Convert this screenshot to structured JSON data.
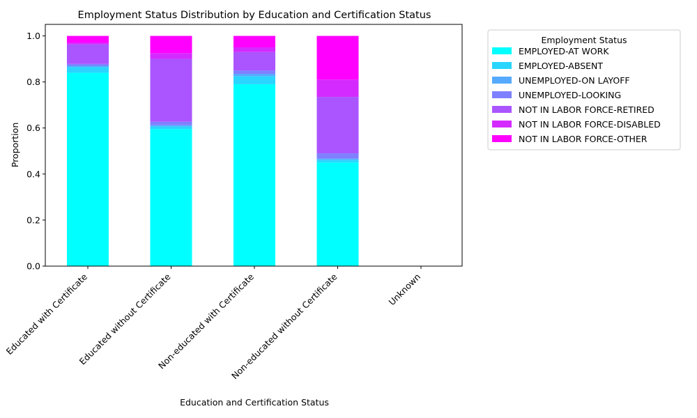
{
  "chart_data": {
    "type": "bar",
    "stacked": true,
    "title": "Employment Status Distribution by Education and Certification Status",
    "xlabel": "Education and Certification Status",
    "ylabel": "Proportion",
    "ylim": [
      0,
      1.05
    ],
    "yticks": [
      "0.0",
      "0.2",
      "0.4",
      "0.6",
      "0.8",
      "1.0"
    ],
    "grid": false,
    "categories": [
      "Educated with Certificate",
      "Educated without Certificate",
      "Non-educated with Certificate",
      "Non-educated without Certificate",
      "Unknown"
    ],
    "legend": {
      "title": "Employment Status",
      "placement": "outside-right-top"
    },
    "series": [
      {
        "name": "EMPLOYED-AT WORK",
        "color": "#00ffff",
        "values": [
          0.84,
          0.595,
          0.79,
          0.45,
          0
        ]
      },
      {
        "name": "EMPLOYED-ABSENT",
        "color": "#2ad5ff",
        "values": [
          0.025,
          0.012,
          0.035,
          0.012,
          0
        ]
      },
      {
        "name": "UNEMPLOYED-ON LAYOFF",
        "color": "#55aaff",
        "values": [
          0.005,
          0.005,
          0.01,
          0.005,
          0
        ]
      },
      {
        "name": "UNEMPLOYED-LOOKING",
        "color": "#7f80ff",
        "values": [
          0.008,
          0.015,
          0.015,
          0.023,
          0
        ]
      },
      {
        "name": "NOT IN LABOR FORCE-RETIRED",
        "color": "#aa55ff",
        "values": [
          0.085,
          0.273,
          0.08,
          0.245,
          0
        ]
      },
      {
        "name": "NOT IN LABOR FORCE-DISABLED",
        "color": "#d42aff",
        "values": [
          0.007,
          0.025,
          0.02,
          0.075,
          0
        ]
      },
      {
        "name": "NOT IN LABOR FORCE-OTHER",
        "color": "#ff00ff",
        "values": [
          0.03,
          0.075,
          0.05,
          0.19,
          0
        ]
      }
    ]
  }
}
